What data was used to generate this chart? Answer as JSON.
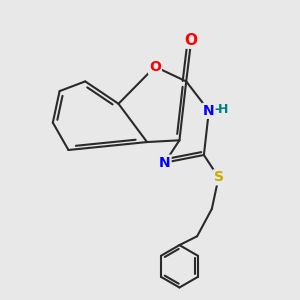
{
  "bg_color": "#e8e8e8",
  "bond_color": "#2a2a2a",
  "bond_width": 1.5,
  "atom_colors": {
    "O": "#ff0000",
    "N": "#0000ff",
    "S": "#ccaa00",
    "H": "#008080"
  },
  "font_size": 10,
  "figsize": [
    3.0,
    3.0
  ],
  "dpi": 100
}
